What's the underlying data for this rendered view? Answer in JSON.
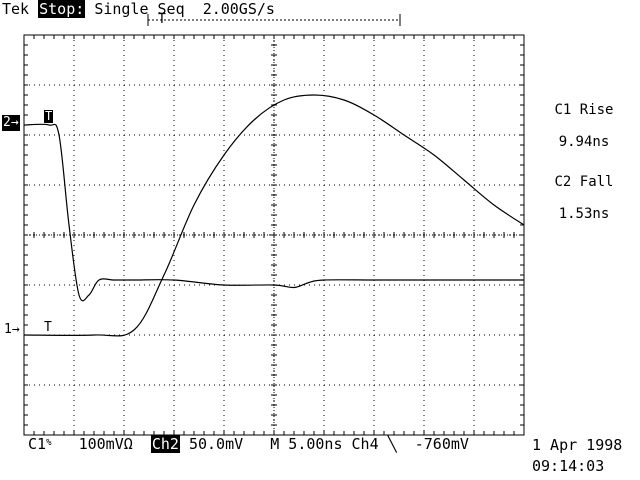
{
  "header": {
    "brand": "Tek",
    "state": "Stop:",
    "mode": "Single Seq",
    "sample_rate": "2.00GS/s",
    "record_bar_marker": "T"
  },
  "markers": {
    "ch2_marker": "2→",
    "ch1_marker": "1→",
    "trigger_ch2": "T",
    "trigger_ch1": "T"
  },
  "measurements": [
    {
      "label": "C1 Rise",
      "value": "9.94ns"
    },
    {
      "label": "C2 Fall",
      "value": "1.53ns"
    }
  ],
  "status_bar": {
    "ch1_label": "C1",
    "ch1_suffix": "%",
    "ch1_scale": "100mVΩ",
    "ch2_label": "Ch2",
    "ch2_scale": "50.0mV",
    "timebase": "M 5.00ns",
    "trigger_source": "Ch4",
    "trigger_slope_icon": "falling-edge-icon",
    "trigger_slope": "╲",
    "trigger_level": "-760mV"
  },
  "datetime": {
    "date": "1 Apr 1998",
    "time": "09:14:03"
  },
  "chart_data": {
    "type": "line",
    "grid": true,
    "xlim": [
      0,
      10
    ],
    "ylim": [
      -4,
      4
    ],
    "series": [
      {
        "name": "C1",
        "x": [
          0,
          1.4,
          2.2,
          2.8,
          3.4,
          4.0,
          4.6,
          5.2,
          5.8,
          6.4,
          7.0,
          7.6,
          8.2,
          8.8,
          9.4,
          10
        ],
        "y": [
          -2.0,
          -2.0,
          -1.9,
          -0.8,
          0.6,
          1.6,
          2.3,
          2.7,
          2.8,
          2.7,
          2.4,
          2.0,
          1.6,
          1.1,
          0.6,
          0.2
        ]
      },
      {
        "name": "C2",
        "x": [
          0,
          0.5,
          0.7,
          0.9,
          1.1,
          1.3,
          1.5,
          1.8,
          2.2,
          3.0,
          4.0,
          5.0,
          5.4,
          5.7,
          6.0,
          7.0,
          8.0,
          9.0,
          10
        ],
        "y": [
          2.2,
          2.2,
          2.0,
          0.2,
          -1.2,
          -1.2,
          -0.9,
          -0.9,
          -0.9,
          -0.9,
          -1.0,
          -1.0,
          -1.05,
          -0.95,
          -0.9,
          -0.9,
          -0.9,
          -0.9,
          -0.9
        ]
      }
    ]
  }
}
